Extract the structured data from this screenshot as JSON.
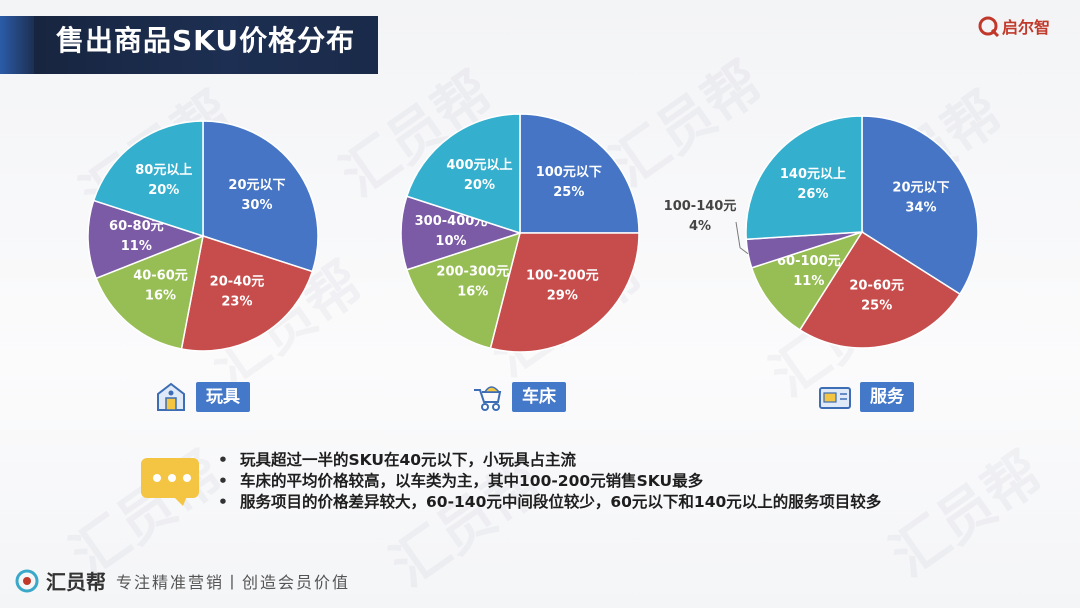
{
  "title": "售出商品SKU价格分布",
  "logo": {
    "text": "启尔智"
  },
  "watermark": "汇员帮",
  "chart_data": [
    {
      "type": "pie",
      "name": "玩具",
      "slices": [
        {
          "label": "20元以下",
          "pct_label": "30%",
          "value": 30,
          "color": "#4575c4"
        },
        {
          "label": "20-40元",
          "pct_label": "23%",
          "value": 23,
          "color": "#c74c4c"
        },
        {
          "label": "40-60元",
          "pct_label": "16%",
          "value": 16,
          "color": "#97be54"
        },
        {
          "label": "60-80元",
          "pct_label": "11%",
          "value": 11,
          "color": "#7b5aa6"
        },
        {
          "label": "80元以上",
          "pct_label": "20%",
          "value": 20,
          "color": "#35afce"
        }
      ]
    },
    {
      "type": "pie",
      "name": "车床",
      "slices": [
        {
          "label": "100元以下",
          "pct_label": "25%",
          "value": 25,
          "color": "#4575c4"
        },
        {
          "label": "100-200元",
          "pct_label": "29%",
          "value": 29,
          "color": "#c74c4c"
        },
        {
          "label": "200-300元",
          "pct_label": "16%",
          "value": 16,
          "color": "#97be54"
        },
        {
          "label": "300-400元",
          "pct_label": "10%",
          "value": 10,
          "color": "#7b5aa6"
        },
        {
          "label": "400元以上",
          "pct_label": "20%",
          "value": 20,
          "color": "#35afce"
        }
      ]
    },
    {
      "type": "pie",
      "name": "服务",
      "slices": [
        {
          "label": "20元以下",
          "pct_label": "34%",
          "value": 34,
          "color": "#4575c4"
        },
        {
          "label": "20-60元",
          "pct_label": "25%",
          "value": 25,
          "color": "#c74c4c"
        },
        {
          "label": "60-100元",
          "pct_label": "11%",
          "value": 11,
          "color": "#97be54"
        },
        {
          "label": "100-140元",
          "pct_label": "4%",
          "value": 4,
          "color": "#7b5aa6",
          "outside": true
        },
        {
          "label": "140元以上",
          "pct_label": "26%",
          "value": 26,
          "color": "#35afce"
        }
      ]
    }
  ],
  "captions": {
    "toys": "玩具",
    "strollers": "车床",
    "services": "服务"
  },
  "notes": [
    "玩具超过一半的SKU在40元以下，小玩具占主流",
    "车床的平均价格较高，以车类为主，其中100-200元销售SKU最多",
    "服务项目的价格差异较大，60-140元中间段位较少，60元以下和140元以上的服务项目较多"
  ],
  "footer": {
    "brand": "汇员帮",
    "slogan": "专注精准营销丨创造会员价值"
  }
}
